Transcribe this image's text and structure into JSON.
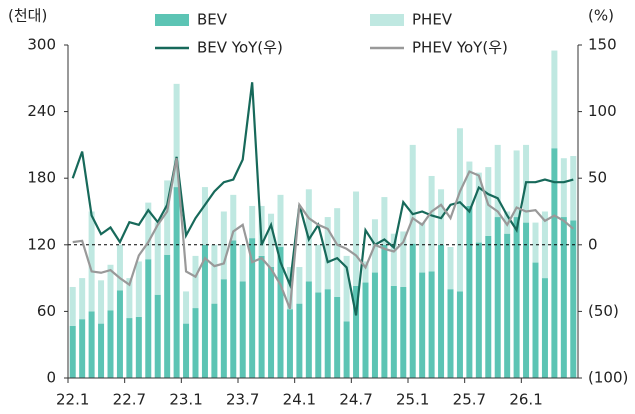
{
  "chart_data": {
    "type": "bar-line",
    "y_label": "(천대)",
    "y2_label": "(%)",
    "categories": [
      "22.1",
      null,
      null,
      null,
      null,
      null,
      "22.7",
      null,
      null,
      null,
      null,
      null,
      "23.1",
      null,
      null,
      null,
      null,
      null,
      "23.7",
      null,
      null,
      null,
      null,
      null,
      "24.1",
      null,
      null,
      null,
      null,
      null,
      "24.7",
      null,
      null,
      null,
      null,
      null,
      "25.1",
      null,
      null,
      null,
      null,
      null,
      "25.7",
      null,
      null,
      null,
      null,
      null,
      "26.1",
      null,
      null,
      null,
      null,
      null
    ],
    "series": [
      {
        "name": "BEV",
        "kind": "bar",
        "color": "#5cc4b4",
        "values": [
          47,
          53,
          60,
          49,
          61,
          79,
          54,
          55,
          107,
          75,
          111,
          172,
          49,
          63,
          120,
          67,
          89,
          124,
          87,
          126,
          110,
          100,
          118,
          62,
          67,
          87,
          77,
          80,
          73,
          51,
          83,
          86,
          95,
          120,
          83,
          82,
          121,
          95,
          96,
          120,
          80,
          78,
          155,
          122,
          128,
          145,
          130,
          145,
          140,
          104,
          90,
          207,
          145,
          142
        ]
      },
      {
        "name": "PHEV",
        "kind": "bar",
        "color": "#bfe8e1",
        "values": [
          35,
          37,
          90,
          39,
          41,
          41,
          36,
          50,
          51,
          65,
          67,
          93,
          29,
          47,
          52,
          53,
          61,
          41,
          33,
          29,
          45,
          48,
          47,
          38,
          33,
          83,
          43,
          65,
          80,
          59,
          85,
          19,
          48,
          43,
          47,
          50,
          89,
          45,
          86,
          50,
          38,
          147,
          40,
          63,
          62,
          65,
          20,
          60,
          70,
          36,
          60,
          88,
          53,
          58
        ]
      },
      {
        "name": "BEV YoY(우)",
        "kind": "line",
        "axis": "y2",
        "color": "#17695a",
        "values": [
          50,
          70,
          22,
          8,
          13,
          2,
          17,
          15,
          26,
          17,
          30,
          66,
          7,
          20,
          30,
          40,
          47,
          49,
          64,
          122,
          0,
          15,
          -13,
          -30,
          30,
          4,
          15,
          -13,
          -10,
          -17,
          -53,
          11,
          0,
          4,
          -2,
          32,
          23,
          25,
          22,
          20,
          30,
          32,
          25,
          43,
          38,
          35,
          22,
          11,
          47,
          47,
          49,
          47,
          47,
          49
        ]
      },
      {
        "name": "PHEV YoY(우)",
        "kind": "line",
        "axis": "y2",
        "color": "#999999",
        "values": [
          2,
          3,
          -20,
          -21,
          -19,
          -25,
          -30,
          -8,
          2,
          15,
          25,
          65,
          -20,
          -24,
          -10,
          -16,
          -14,
          10,
          15,
          -13,
          -10,
          -18,
          -30,
          -48,
          30,
          20,
          15,
          12,
          0,
          -3,
          -8,
          -17,
          0,
          -3,
          -5,
          2,
          20,
          15,
          25,
          30,
          20,
          40,
          55,
          52,
          30,
          25,
          15,
          28,
          25,
          26,
          18,
          22,
          18,
          12
        ]
      }
    ],
    "ylim": [
      0,
      300
    ],
    "yticks": [
      0,
      60,
      120,
      180,
      240,
      300
    ],
    "y2lim": [
      -100,
      150
    ],
    "y2ticks": [
      {
        "value": -100,
        "label": "(100)"
      },
      {
        "value": -50,
        "label": "(50)"
      },
      0,
      50,
      100,
      150
    ],
    "reference_line_y": 120,
    "legend": "top"
  }
}
